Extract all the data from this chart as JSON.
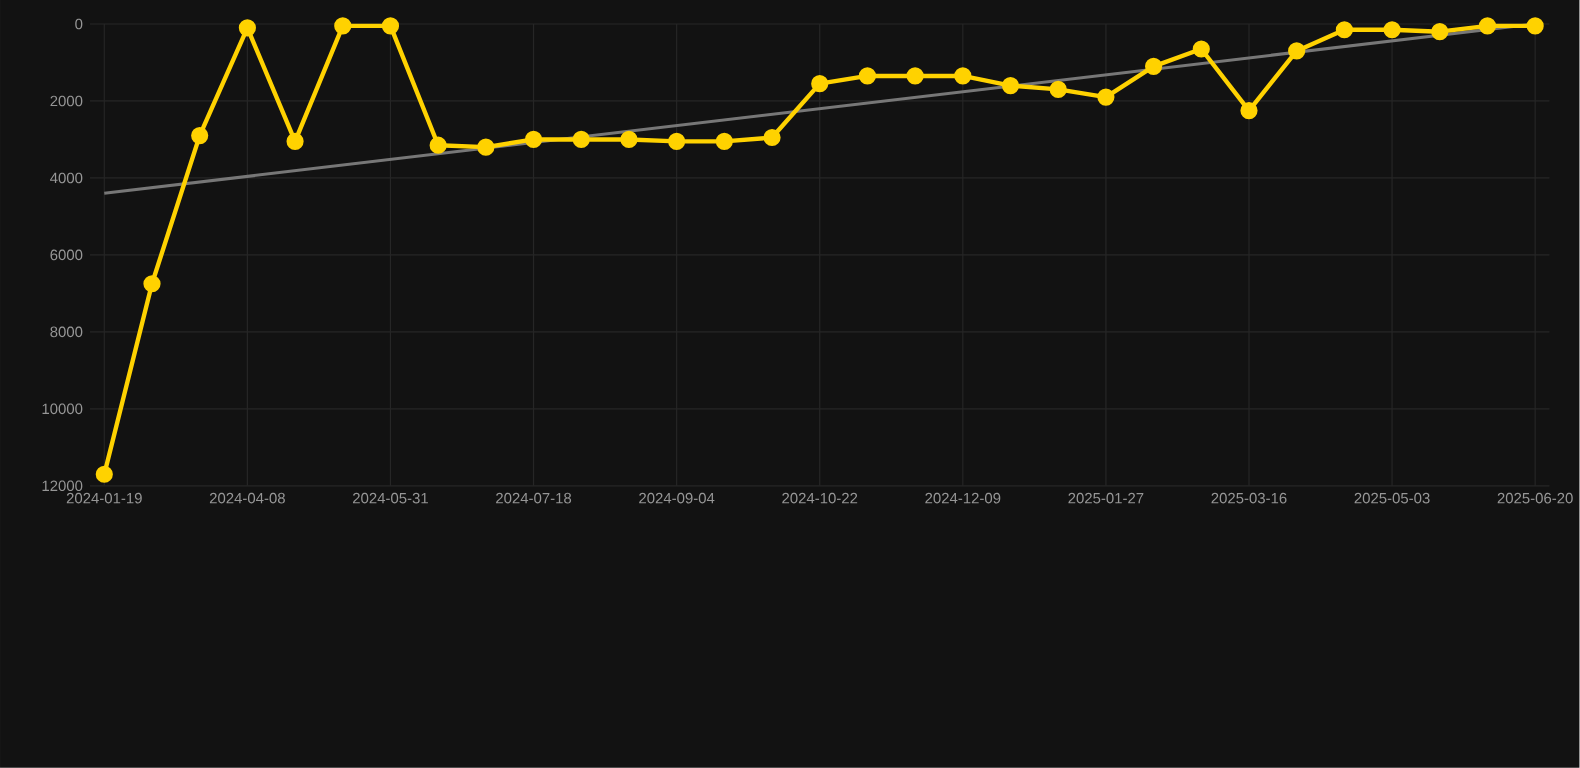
{
  "chart_data": {
    "type": "line",
    "categories": [
      "2024-01-19",
      null,
      null,
      "2024-04-08",
      null,
      null,
      "2024-05-31",
      null,
      null,
      "2024-07-18",
      null,
      null,
      "2024-09-04",
      null,
      null,
      "2024-10-22",
      null,
      null,
      "2024-12-09",
      null,
      null,
      "2025-01-27",
      null,
      null,
      "2025-03-16",
      null,
      null,
      "2025-05-03",
      null,
      null,
      "2025-06-20"
    ],
    "series": [
      {
        "color": "#ffd200",
        "values": [
          11700,
          6750,
          2900,
          100,
          3050,
          50,
          50,
          3150,
          3200,
          3000,
          3000,
          3000,
          3050,
          3050,
          2950,
          1550,
          1350,
          1350,
          1350,
          1600,
          1700,
          1900,
          1100,
          650,
          2250,
          700,
          150,
          150,
          200,
          50,
          50
        ]
      },
      {
        "type": "line",
        "color": "#777777",
        "marker": "none",
        "values": [
          4400,
          null,
          null,
          null,
          null,
          null,
          null,
          null,
          null,
          null,
          null,
          null,
          null,
          null,
          null,
          null,
          null,
          null,
          null,
          null,
          null,
          null,
          null,
          null,
          null,
          null,
          null,
          null,
          null,
          null,
          0
        ]
      }
    ],
    "ylim": [
      12000,
      0
    ],
    "yticks": [
      0,
      2000,
      4000,
      6000,
      8000,
      10000,
      12000
    ],
    "grid": true,
    "marker": "circle"
  }
}
